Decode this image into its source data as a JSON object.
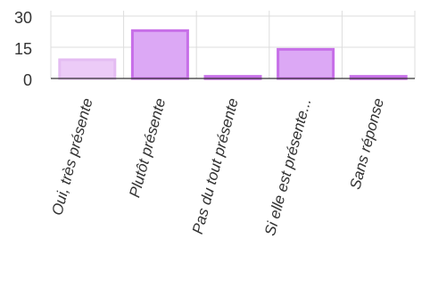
{
  "chart_data": {
    "type": "bar",
    "categories": [
      "Oui, très présente",
      "Plutôt présente",
      "Pas du tout présente",
      "Si elle est présente...",
      "Sans réponse"
    ],
    "values": [
      9,
      23,
      1,
      14,
      1
    ],
    "ylim": [
      0,
      30
    ],
    "yticks": [
      "30",
      "15",
      "0"
    ],
    "grid": true,
    "colors": {
      "bar_fills": [
        "#eccbf7",
        "#dca8f5",
        "#d29af2",
        "#dca8f5",
        "#d29af2"
      ],
      "bar_strokes": [
        "#e4bcf2",
        "#c76fe8",
        "#c76fe8",
        "#c76fe8",
        "#c76fe8"
      ],
      "grid": "#dddddd",
      "axis": "#333333"
    }
  }
}
